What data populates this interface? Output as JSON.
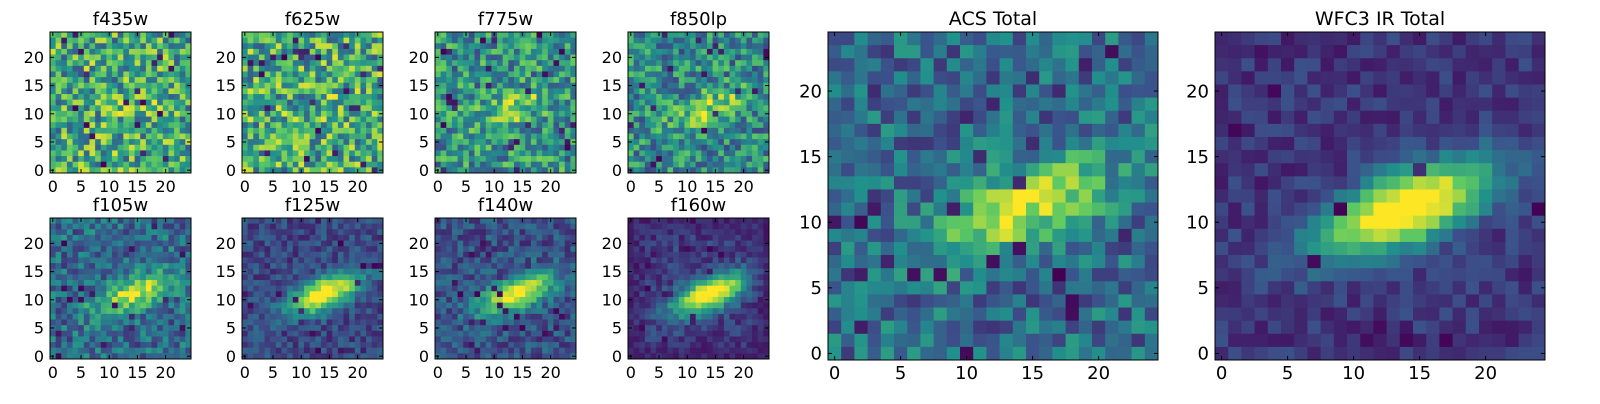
{
  "figure": {
    "colormap": "viridis",
    "colormap_stops": [
      "#440154",
      "#3b528b",
      "#21918c",
      "#5ec962",
      "#fde725"
    ]
  },
  "chart_data": [
    {
      "type": "heatmap",
      "title": "f435w",
      "grid": false,
      "xlim": [
        0,
        24
      ],
      "ylim": [
        0,
        24
      ],
      "xticks": [
        0,
        5,
        10,
        15,
        20
      ],
      "yticks": [
        0,
        5,
        10,
        15,
        20
      ],
      "xtick_labels": [
        "0",
        "5",
        "10",
        "15",
        "20"
      ],
      "ytick_labels": [
        "0",
        "5",
        "10",
        "15",
        "20"
      ],
      "grid_size": [
        25,
        25
      ],
      "noise_level": 0.95,
      "pattern": "uniform noise",
      "value_range": [
        0,
        1
      ]
    },
    {
      "type": "heatmap",
      "title": "f625w",
      "grid": false,
      "xlim": [
        0,
        24
      ],
      "ylim": [
        0,
        24
      ],
      "xticks": [
        0,
        5,
        10,
        15,
        20
      ],
      "yticks": [
        0,
        5,
        10,
        15,
        20
      ],
      "xtick_labels": [
        "0",
        "5",
        "10",
        "15",
        "20"
      ],
      "ytick_labels": [
        "0",
        "5",
        "10",
        "15",
        "20"
      ],
      "grid_size": [
        25,
        25
      ],
      "noise_level": 0.95,
      "pattern": "uniform noise",
      "value_range": [
        0,
        1
      ]
    },
    {
      "type": "heatmap",
      "title": "f775w",
      "grid": false,
      "xlim": [
        0,
        24
      ],
      "ylim": [
        0,
        24
      ],
      "xticks": [
        0,
        5,
        10,
        15,
        20
      ],
      "yticks": [
        0,
        5,
        10,
        15,
        20
      ],
      "xtick_labels": [
        "0",
        "5",
        "10",
        "15",
        "20"
      ],
      "ytick_labels": [
        "0",
        "5",
        "10",
        "15",
        "20"
      ],
      "grid_size": [
        25,
        25
      ],
      "noise_level": 0.8,
      "pattern": "faint central source",
      "value_range": [
        0,
        1
      ]
    },
    {
      "type": "heatmap",
      "title": "f850lp",
      "grid": false,
      "xlim": [
        0,
        24
      ],
      "ylim": [
        0,
        24
      ],
      "xticks": [
        0,
        5,
        10,
        15,
        20
      ],
      "yticks": [
        0,
        5,
        10,
        15,
        20
      ],
      "xtick_labels": [
        "0",
        "5",
        "10",
        "15",
        "20"
      ],
      "ytick_labels": [
        "0",
        "5",
        "10",
        "15",
        "20"
      ],
      "grid_size": [
        25,
        25
      ],
      "noise_level": 0.75,
      "pattern": "faint central source",
      "value_range": [
        0,
        1
      ]
    },
    {
      "type": "heatmap",
      "title": "f105w",
      "grid": false,
      "xlim": [
        0,
        24
      ],
      "ylim": [
        0,
        24
      ],
      "xticks": [
        0,
        5,
        10,
        15,
        20
      ],
      "yticks": [
        0,
        5,
        10,
        15,
        20
      ],
      "xtick_labels": [
        "0",
        "5",
        "10",
        "15",
        "20"
      ],
      "ytick_labels": [
        "0",
        "5",
        "10",
        "15",
        "20"
      ],
      "grid_size": [
        25,
        25
      ],
      "noise_level": 0.55,
      "pattern": "elongated central source",
      "value_range": [
        0,
        1
      ]
    },
    {
      "type": "heatmap",
      "title": "f125w",
      "grid": false,
      "xlim": [
        0,
        24
      ],
      "ylim": [
        0,
        24
      ],
      "xticks": [
        0,
        5,
        10,
        15,
        20
      ],
      "yticks": [
        0,
        5,
        10,
        15,
        20
      ],
      "xtick_labels": [
        "0",
        "5",
        "10",
        "15",
        "20"
      ],
      "ytick_labels": [
        "0",
        "5",
        "10",
        "15",
        "20"
      ],
      "grid_size": [
        25,
        25
      ],
      "noise_level": 0.35,
      "pattern": "elongated central source",
      "value_range": [
        0,
        1
      ]
    },
    {
      "type": "heatmap",
      "title": "f140w",
      "grid": false,
      "xlim": [
        0,
        24
      ],
      "ylim": [
        0,
        24
      ],
      "xticks": [
        0,
        5,
        10,
        15,
        20
      ],
      "yticks": [
        0,
        5,
        10,
        15,
        20
      ],
      "xtick_labels": [
        "0",
        "5",
        "10",
        "15",
        "20"
      ],
      "ytick_labels": [
        "0",
        "5",
        "10",
        "15",
        "20"
      ],
      "grid_size": [
        25,
        25
      ],
      "noise_level": 0.4,
      "pattern": "elongated central source",
      "value_range": [
        0,
        1
      ]
    },
    {
      "type": "heatmap",
      "title": "f160w",
      "grid": false,
      "xlim": [
        0,
        24
      ],
      "ylim": [
        0,
        24
      ],
      "xticks": [
        0,
        5,
        10,
        15,
        20
      ],
      "yticks": [
        0,
        5,
        10,
        15,
        20
      ],
      "xtick_labels": [
        "0",
        "5",
        "10",
        "15",
        "20"
      ],
      "ytick_labels": [
        "0",
        "5",
        "10",
        "15",
        "20"
      ],
      "grid_size": [
        25,
        25
      ],
      "noise_level": 0.3,
      "pattern": "elongated central source with dark borders",
      "value_range": [
        0,
        1
      ]
    },
    {
      "type": "heatmap",
      "title": "ACS Total",
      "grid": false,
      "xlim": [
        0,
        24
      ],
      "ylim": [
        0,
        24
      ],
      "xticks": [
        0,
        5,
        10,
        15,
        20
      ],
      "yticks": [
        0,
        5,
        10,
        15,
        20
      ],
      "xtick_labels": [
        "0",
        "5",
        "10",
        "15",
        "20"
      ],
      "ytick_labels": [
        "0",
        "5",
        "10",
        "15",
        "20"
      ],
      "grid_size": [
        25,
        25
      ],
      "noise_level": 0.55,
      "pattern": "bright central blob",
      "value_range": [
        0,
        1
      ]
    },
    {
      "type": "heatmap",
      "title": "WFC3 IR Total",
      "grid": false,
      "xlim": [
        0,
        24
      ],
      "ylim": [
        0,
        24
      ],
      "xticks": [
        0,
        5,
        10,
        15,
        20
      ],
      "yticks": [
        0,
        5,
        10,
        15,
        20
      ],
      "xtick_labels": [
        "0",
        "5",
        "10",
        "15",
        "20"
      ],
      "ytick_labels": [
        "0",
        "5",
        "10",
        "15",
        "20"
      ],
      "grid_size": [
        25,
        25
      ],
      "noise_level": 0.25,
      "pattern": "smooth elongated central source",
      "value_range": [
        0,
        1
      ]
    }
  ]
}
